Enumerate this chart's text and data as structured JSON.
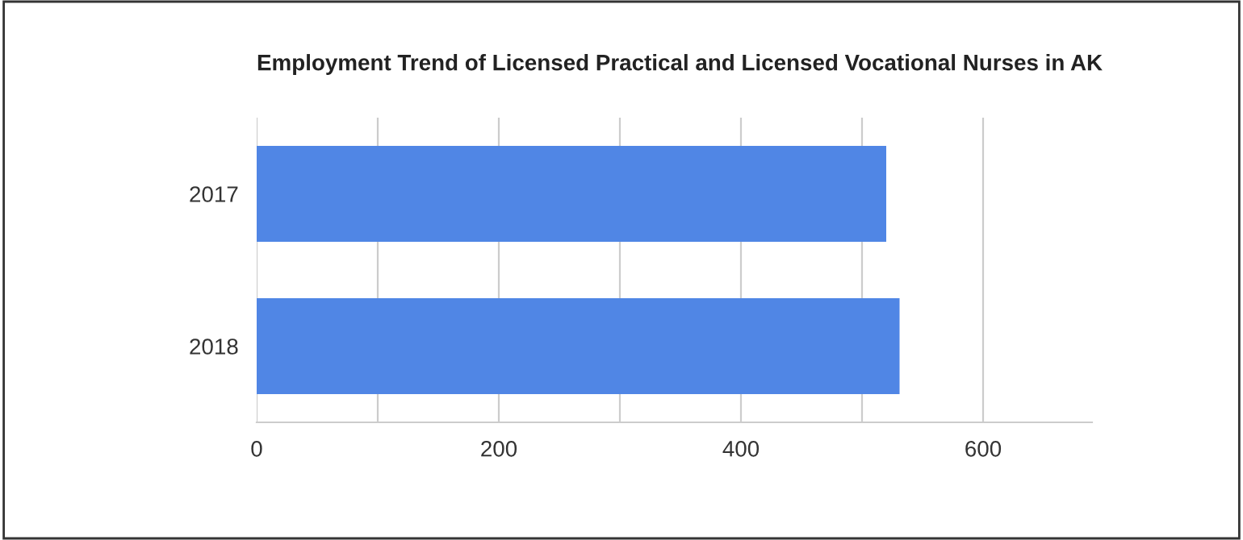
{
  "chart_data": {
    "type": "bar",
    "orientation": "horizontal",
    "title": "Employment Trend of Licensed Practical and Licensed Vocational Nurses in AK",
    "categories": [
      "2017",
      "2018"
    ],
    "values": [
      520,
      531
    ],
    "color": "#5086e5",
    "xlim": [
      0,
      690
    ],
    "xticks": [
      0,
      {
        "value": 100,
        "label": null
      },
      200,
      {
        "value": 300,
        "label": null
      },
      400,
      {
        "value": 500,
        "label": null
      },
      600
    ],
    "grid": "x"
  }
}
